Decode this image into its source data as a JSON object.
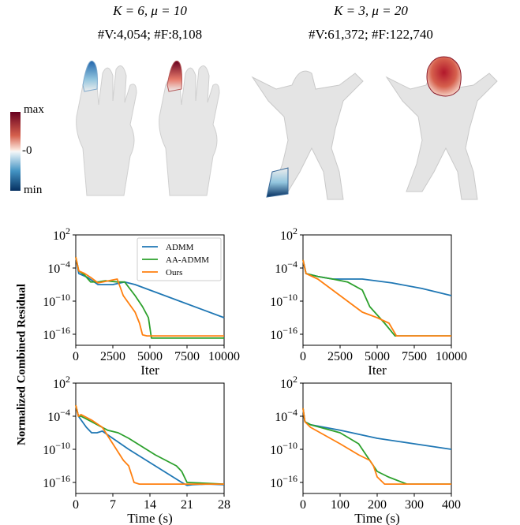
{
  "headers": {
    "left_params": "K = 6,  μ = 10",
    "left_stats": "#V:4,054;  #F:8,108",
    "right_params": "K = 3,  μ = 20",
    "right_stats": "#V:61,372;  #F:122,740"
  },
  "colorbar": {
    "max_label": "max",
    "zero_label": "-0",
    "min_label": "min",
    "colors": [
      "#67001f",
      "#d6604d",
      "#f7f7f7",
      "#4393c3",
      "#053061"
    ]
  },
  "shared_ylabel": "Normalized Combined Residual",
  "series_colors": {
    "ADMM": "#1f77b4",
    "AA-ADMM": "#2ca02c",
    "Ours": "#ff7f0e"
  },
  "chart_data": [
    {
      "type": "line",
      "panel": "top-left",
      "ylog": true,
      "ylim": [
        1e-18,
        100.0
      ],
      "xlim": [
        0,
        10000
      ],
      "xticks": [
        0,
        2500,
        5000,
        7500,
        10000
      ],
      "xlabel": "Iter",
      "yticks": [
        "10^2",
        "10^-4",
        "10^-10",
        "10^-16"
      ],
      "legend": {
        "position": "top-right",
        "entries": [
          "ADMM",
          "AA-ADMM",
          "Ours"
        ]
      },
      "series": [
        {
          "name": "ADMM",
          "x": [
            0,
            200,
            800,
            1500,
            2500,
            3300,
            4000,
            5000,
            7000,
            10000
          ],
          "y": [
            0.01,
            1e-05,
            2e-06,
            1e-07,
            1e-07,
            3e-07,
            1e-07,
            1e-08,
            1e-10,
            1e-13
          ]
        },
        {
          "name": "AA-ADMM",
          "x": [
            0,
            200,
            600,
            1000,
            1500,
            2000,
            2800,
            3300,
            4000,
            4500,
            4900,
            5100,
            10000
          ],
          "y": [
            0.01,
            3e-05,
            5e-06,
            3e-07,
            3e-07,
            5e-07,
            3e-07,
            3e-07,
            1e-09,
            1e-11,
            1e-13,
            2e-17,
            2e-17
          ]
        },
        {
          "name": "Ours",
          "x": [
            0,
            200,
            600,
            1000,
            1500,
            2800,
            3200,
            4000,
            4300,
            4500,
            4800,
            10000
          ],
          "y": [
            0.01,
            3e-05,
            1e-05,
            2e-06,
            2e-07,
            1e-06,
            1e-09,
            1e-12,
            1e-14,
            8e-17,
            5e-17,
            5e-17
          ]
        }
      ]
    },
    {
      "type": "line",
      "panel": "top-right",
      "ylog": true,
      "ylim": [
        1e-18,
        100.0
      ],
      "xlim": [
        0,
        10000
      ],
      "xticks": [
        0,
        2500,
        5000,
        7500,
        10000
      ],
      "xlabel": "Iter",
      "yticks": [
        "10^2",
        "10^-4",
        "10^-10",
        "10^-16"
      ],
      "series": [
        {
          "name": "ADMM",
          "x": [
            0,
            200,
            1000,
            2000,
            4000,
            6000,
            8000,
            10000
          ],
          "y": [
            0.003,
            1e-05,
            3e-06,
            1e-06,
            1e-06,
            2e-07,
            2e-08,
            1e-09
          ]
        },
        {
          "name": "AA-ADMM",
          "x": [
            0,
            200,
            1000,
            2000,
            3000,
            4000,
            4500,
            5500,
            6200,
            10000
          ],
          "y": [
            0.003,
            1e-05,
            3e-06,
            1e-06,
            3e-07,
            1e-08,
            1e-11,
            1e-14,
            5e-17,
            5e-17
          ]
        },
        {
          "name": "Ours",
          "x": [
            0,
            200,
            1000,
            2000,
            3000,
            4000,
            5000,
            5800,
            6300,
            10000
          ],
          "y": [
            0.003,
            1e-05,
            1e-06,
            1e-08,
            1e-10,
            1e-12,
            1e-13,
            1e-14,
            5e-17,
            5e-17
          ]
        }
      ]
    },
    {
      "type": "line",
      "panel": "bottom-left",
      "ylog": true,
      "ylim": [
        1e-18,
        100.0
      ],
      "xlim": [
        0,
        28
      ],
      "xticks": [
        0,
        7,
        14,
        21,
        28
      ],
      "xlabel": "Time (s)",
      "yticks": [
        "10^2",
        "10^-4",
        "10^-10",
        "10^-16"
      ],
      "series": [
        {
          "name": "ADMM",
          "x": [
            0,
            0.5,
            2,
            3,
            4,
            5,
            10,
            15,
            20,
            21,
            22,
            25,
            28
          ],
          "y": [
            0.01,
            0.0001,
            1e-06,
            1e-07,
            1e-07,
            2e-07,
            1e-10,
            1e-13,
            1e-16,
            3e-17,
            4e-17,
            5e-17,
            4e-17
          ]
        },
        {
          "name": "AA-ADMM",
          "x": [
            0,
            0.5,
            1,
            3,
            6,
            8,
            10,
            15,
            19,
            20,
            21,
            28
          ],
          "y": [
            0.01,
            0.0001,
            0.0001,
            1e-05,
            3e-07,
            1e-07,
            1e-08,
            1e-11,
            1e-13,
            1e-14,
            1e-16,
            5e-17
          ]
        },
        {
          "name": "Ours",
          "x": [
            0,
            0.5,
            1,
            3,
            5,
            7,
            9,
            10,
            11,
            12,
            28
          ],
          "y": [
            0.01,
            0.0001,
            0.0002,
            2e-05,
            1e-06,
            1e-09,
            1e-12,
            1e-13,
            1e-16,
            5e-17,
            5e-17
          ]
        }
      ]
    },
    {
      "type": "line",
      "panel": "bottom-right",
      "ylog": true,
      "ylim": [
        1e-18,
        100.0
      ],
      "xlim": [
        0,
        400
      ],
      "xticks": [
        0,
        100,
        200,
        300,
        400
      ],
      "xlabel": "Time (s)",
      "yticks": [
        "10^2",
        "10^-4",
        "10^-10",
        "10^-16"
      ],
      "series": [
        {
          "name": "ADMM",
          "x": [
            0,
            5,
            20,
            100,
            200,
            300,
            400
          ],
          "y": [
            0.003,
            1e-05,
            3e-06,
            3e-07,
            1e-08,
            1e-09,
            1e-10
          ]
        },
        {
          "name": "AA-ADMM",
          "x": [
            0,
            5,
            20,
            100,
            150,
            180,
            200,
            230,
            280,
            400
          ],
          "y": [
            0.003,
            1e-05,
            3e-06,
            1e-07,
            1e-09,
            1e-12,
            1e-14,
            1e-15,
            5e-17,
            5e-17
          ]
        },
        {
          "name": "Ours",
          "x": [
            0,
            5,
            20,
            100,
            150,
            180,
            190,
            200,
            220,
            400
          ],
          "y": [
            0.003,
            1e-05,
            1e-06,
            1e-09,
            1e-11,
            1e-12,
            1e-13,
            1e-15,
            5e-17,
            5e-17
          ]
        }
      ]
    }
  ]
}
